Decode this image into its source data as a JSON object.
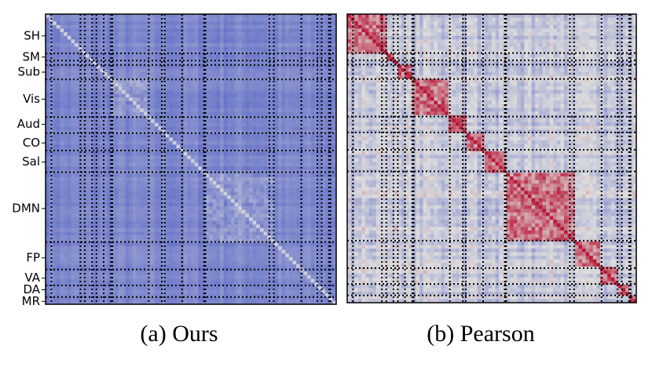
{
  "panels": [
    {
      "networks": [
        "SH",
        "SM",
        "Sub",
        "Vis",
        "Aud",
        "CO",
        "Sal",
        "DMN",
        "FP",
        "VA",
        "DA",
        "MR"
      ],
      "caption": "(a) Ours"
    },
    {
      "caption": "(b) Pearson"
    }
  ]
}
